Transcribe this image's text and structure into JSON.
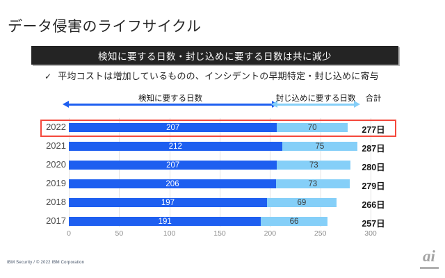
{
  "page": {
    "title": "データ侵害のライフサイクル",
    "banner": "検知に要する日数・封じ込めに要する日数は共に減少",
    "bullet_check": "✓",
    "bullet": "平均コストは増加しているものの、インシデントの早期特定・封じ込めに寄与",
    "footer": "IBM Security / © 2022 IBM Corporation",
    "logo": "ai"
  },
  "chart_data": {
    "type": "bar",
    "orientation": "horizontal",
    "stacked": true,
    "categories": [
      "2022",
      "2021",
      "2020",
      "2019",
      "2018",
      "2017"
    ],
    "series": [
      {
        "name": "検知に要する日数",
        "color": "#1e5ff0",
        "values": [
          207,
          212,
          207,
          206,
          197,
          191
        ]
      },
      {
        "name": "封じ込めに要する日数",
        "color": "#85cff8",
        "values": [
          70,
          75,
          73,
          73,
          69,
          66
        ]
      }
    ],
    "totals": [
      277,
      287,
      280,
      279,
      266,
      257
    ],
    "total_suffix": "日",
    "total_header": "合計",
    "xlim": [
      0,
      300
    ],
    "xticks": [
      0,
      50,
      100,
      150,
      200,
      250,
      300
    ],
    "grid": true,
    "legend_position": "top",
    "highlighted_category": "2022",
    "highlight_color": "#f4483c"
  }
}
